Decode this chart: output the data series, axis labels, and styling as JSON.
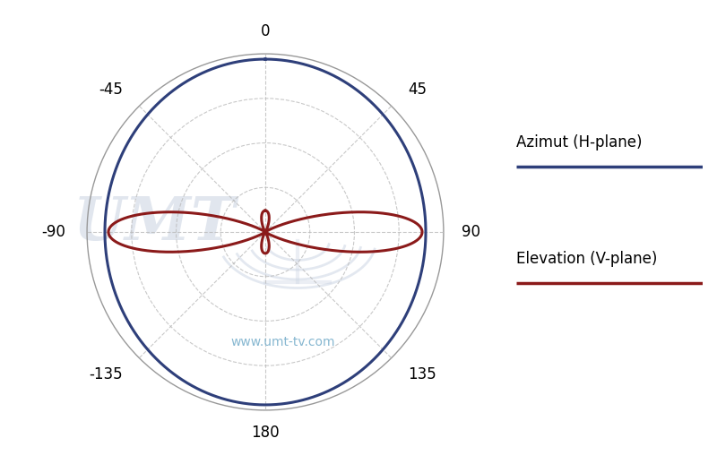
{
  "azimut_color": "#2e3f7a",
  "elevation_color": "#8b1a1a",
  "background_color": "#ffffff",
  "grid_color": "#aaaaaa",
  "grid_dashed_color": "#bbbbbb",
  "outer_circle_color": "#999999",
  "legend_azimut": "Azimut (H-plane)",
  "legend_elevation": "Elevation (V-plane)",
  "website": "www.umt-tv.com",
  "website_color": "#7ab0cc",
  "watermark_color": "#cdd6e4",
  "line_width": 2.2,
  "az_a": 0.97,
  "az_b": 0.9,
  "el_main_scale": 0.88,
  "el_main_power": 6,
  "el_side_scale": 0.12,
  "el_side_power": 2,
  "n_grid_circles": 4,
  "spoke_angles_deg": [
    0,
    45,
    90,
    135
  ],
  "label_fontsize": 12,
  "website_fontsize": 10,
  "legend_fontsize": 12
}
